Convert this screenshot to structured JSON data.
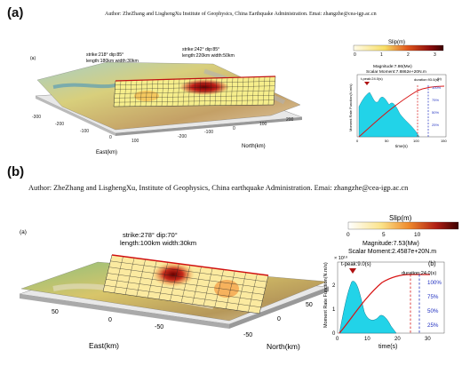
{
  "panel_a": {
    "letter": "(a)",
    "author": "Author: ZheZhang and LisghengXu    Institute of Geophysics, China Earthquake Administration.    Emai: zhangzhe@cea-igp.ac.cn",
    "sub_label": "(a)",
    "fault1": {
      "line1": "strike:218° dip:85°",
      "line2": "length:180km width:30km"
    },
    "fault2": {
      "line1": "strike:242° dip:85°",
      "line2": "length:220km width:50km"
    },
    "slip_title": "Slip(m)",
    "slip_ticks": [
      "0",
      "1",
      "2",
      "3"
    ],
    "magnitude": "Magnitude:7.86(Mw)",
    "moment": "Scalar Moment:7.8862e+20N.m",
    "tpeak": "t-peak:24.0(s)",
    "duration": "duration:93.0(s)",
    "b_label": "(b)",
    "ylabel": "Moment Rate Function(N.m/s)",
    "xlabel": "time(s)",
    "x_ticks": [
      "0",
      "50",
      "100",
      "150"
    ],
    "percents": [
      "100%",
      "75%",
      "50%",
      "25%"
    ],
    "east_label": "East(km)",
    "north_label": "North(km)",
    "east_ticks": [
      "-300",
      "-200",
      "-100",
      "0",
      "100"
    ],
    "north_ticks": [
      "-200",
      "-100",
      "0",
      "100",
      "200"
    ]
  },
  "panel_b": {
    "letter": "(b)",
    "author": "Author: ZheZhang  and LisghengXu,    Institute of Geophysics, China earthquake Administration.    Emai: zhangzhe@cea-igp.ac.cn",
    "sub_label": "(a)",
    "fault1": {
      "line1": "strike:278° dip:70°",
      "line2": "length:100km width:30km"
    },
    "slip_title": "Slip(m)",
    "slip_ticks": [
      "0",
      "5",
      "10"
    ],
    "magnitude": "Magnitude:7.53(Mw)",
    "moment": "Scalar Moment:2.4587e+20N.m",
    "exp": "× 10¹⁹",
    "tpeak": "t-peak:9.0(s)",
    "duration": "duration:24.0(s)",
    "b_label": "(b)",
    "ylabel": "Moment Rate Function(N.m/s)",
    "xlabel": "time(s)",
    "x_ticks": [
      "0",
      "10",
      "20",
      "30"
    ],
    "y_ticks": [
      "0",
      "1",
      "2"
    ],
    "percents": [
      "100%",
      "75%",
      "50%",
      "25%"
    ],
    "east_label": "East(km)",
    "north_label": "North(km)",
    "east_ticks": [
      "50",
      "0",
      "-50"
    ],
    "north_ticks": [
      "-50",
      "0",
      "50"
    ]
  },
  "colors": {
    "slip_low": "#fffbe8",
    "slip_mid": "#f2a33b",
    "slip_high": "#5e0000",
    "stf_fill": "#22d3e8",
    "cumulative": "#d81414",
    "peak_marker": "#b01010",
    "duration_line": "#2030c0"
  }
}
